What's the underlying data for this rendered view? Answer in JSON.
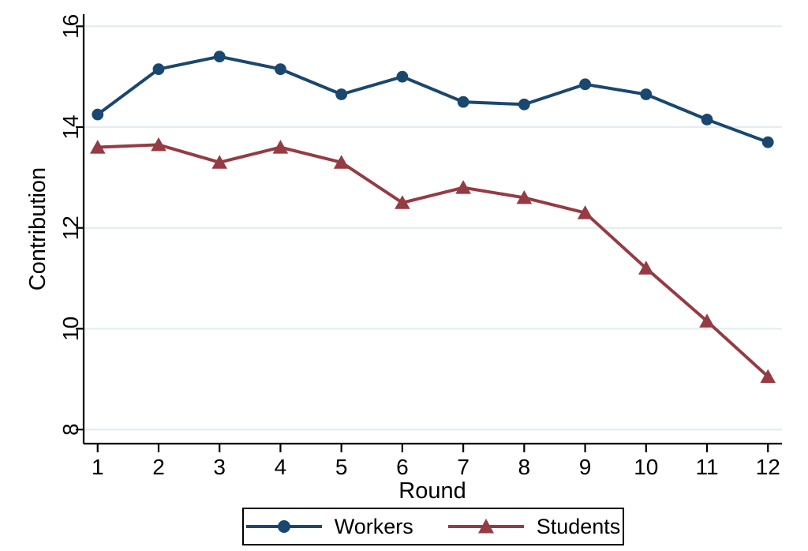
{
  "chart_data": {
    "type": "line",
    "title": "",
    "xlabel": "Round",
    "ylabel": "Contribution",
    "x": [
      1,
      2,
      3,
      4,
      5,
      6,
      7,
      8,
      9,
      10,
      11,
      12
    ],
    "yticks": [
      8,
      10,
      12,
      14,
      16
    ],
    "xlim": [
      0.77,
      12.23
    ],
    "ylim": [
      7.72,
      16.24
    ],
    "grid": "horizontal",
    "grid_color": "#e3edf0",
    "axis_color": "#000000",
    "legend_position": "bottom-center",
    "series": [
      {
        "name": "Workers",
        "marker": "circle",
        "color": "#1a476f",
        "values": [
          14.25,
          15.15,
          15.4,
          15.15,
          14.65,
          15.0,
          14.5,
          14.45,
          14.85,
          14.65,
          14.15,
          13.7
        ]
      },
      {
        "name": "Students",
        "marker": "triangle",
        "color": "#953b43",
        "values": [
          13.6,
          13.65,
          13.3,
          13.6,
          13.3,
          12.5,
          12.8,
          12.6,
          12.3,
          11.2,
          10.15,
          9.05
        ]
      }
    ]
  }
}
